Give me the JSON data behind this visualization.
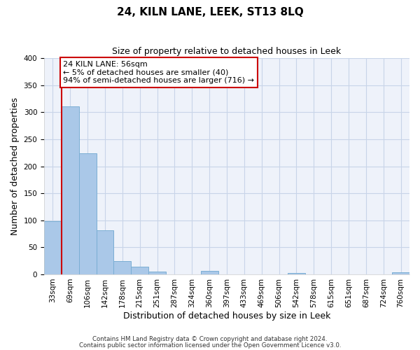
{
  "title": "24, KILN LANE, LEEK, ST13 8LQ",
  "subtitle": "Size of property relative to detached houses in Leek",
  "xlabel": "Distribution of detached houses by size in Leek",
  "ylabel": "Number of detached properties",
  "bin_labels": [
    "33sqm",
    "69sqm",
    "106sqm",
    "142sqm",
    "178sqm",
    "215sqm",
    "251sqm",
    "287sqm",
    "324sqm",
    "360sqm",
    "397sqm",
    "433sqm",
    "469sqm",
    "506sqm",
    "542sqm",
    "578sqm",
    "615sqm",
    "651sqm",
    "687sqm",
    "724sqm",
    "760sqm"
  ],
  "bar_values": [
    99,
    311,
    224,
    81,
    25,
    14,
    5,
    0,
    0,
    6,
    0,
    0,
    0,
    0,
    2,
    0,
    0,
    0,
    0,
    0,
    4
  ],
  "bar_color": "#aac8e8",
  "bar_edge_color": "#7aaed4",
  "annotation_text_line1": "24 KILN LANE: 56sqm",
  "annotation_text_line2": "← 5% of detached houses are smaller (40)",
  "annotation_text_line3": "94% of semi-detached houses are larger (716) →",
  "red_line_color": "#cc0000",
  "annotation_box_edge_color": "#cc0000",
  "ylim": [
    0,
    400
  ],
  "yticks": [
    0,
    50,
    100,
    150,
    200,
    250,
    300,
    350,
    400
  ],
  "background_color": "#eef2fa",
  "footer_line1": "Contains HM Land Registry data © Crown copyright and database right 2024.",
  "footer_line2": "Contains public sector information licensed under the Open Government Licence v3.0.",
  "grid_color": "#c8d4e8",
  "title_fontsize": 11,
  "subtitle_fontsize": 9,
  "xlabel_fontsize": 9,
  "ylabel_fontsize": 9,
  "tick_fontsize": 7.5,
  "annotation_fontsize": 8
}
